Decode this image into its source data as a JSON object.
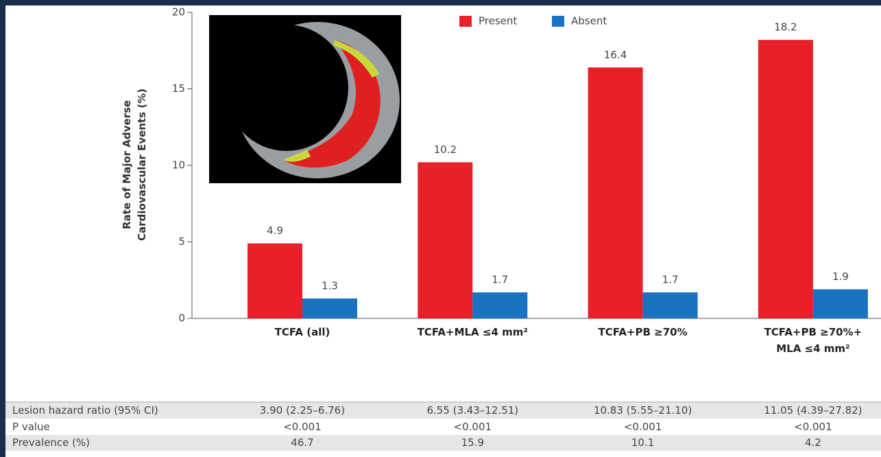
{
  "chart_data": {
    "type": "bar",
    "y_label": "Rate of Major Adverse Cardiovascular Events (%)",
    "categories": [
      "TCFA (all)",
      "TCFA+MLA ≤4 mm²",
      "TCFA+PB ≥70%",
      "TCFA+PB ≥70%+\nMLA ≤4 mm²"
    ],
    "series": [
      {
        "name": "Present",
        "color": "#e8202a",
        "values": [
          4.9,
          10.2,
          16.4,
          18.2
        ]
      },
      {
        "name": "Absent",
        "color": "#1a73c0",
        "values": [
          1.3,
          1.7,
          1.7,
          1.9
        ]
      }
    ],
    "ylim": [
      0,
      20
    ],
    "yticks": [
      0,
      5,
      10,
      15,
      20
    ],
    "legend": "top"
  },
  "table": {
    "rows": [
      [
        "Lesion hazard ratio (95% CI)",
        "3.90 (2.25–6.76)",
        "6.55 (3.43–12.51)",
        "10.83 (5.55–21.10)",
        "11.05 (4.39–27.82)"
      ],
      [
        "P value",
        "<0.001",
        "<0.001",
        "<0.001",
        "<0.001"
      ],
      [
        "Prevalence (%)",
        "46.7",
        "15.9",
        "10.1",
        "4.2"
      ]
    ]
  }
}
